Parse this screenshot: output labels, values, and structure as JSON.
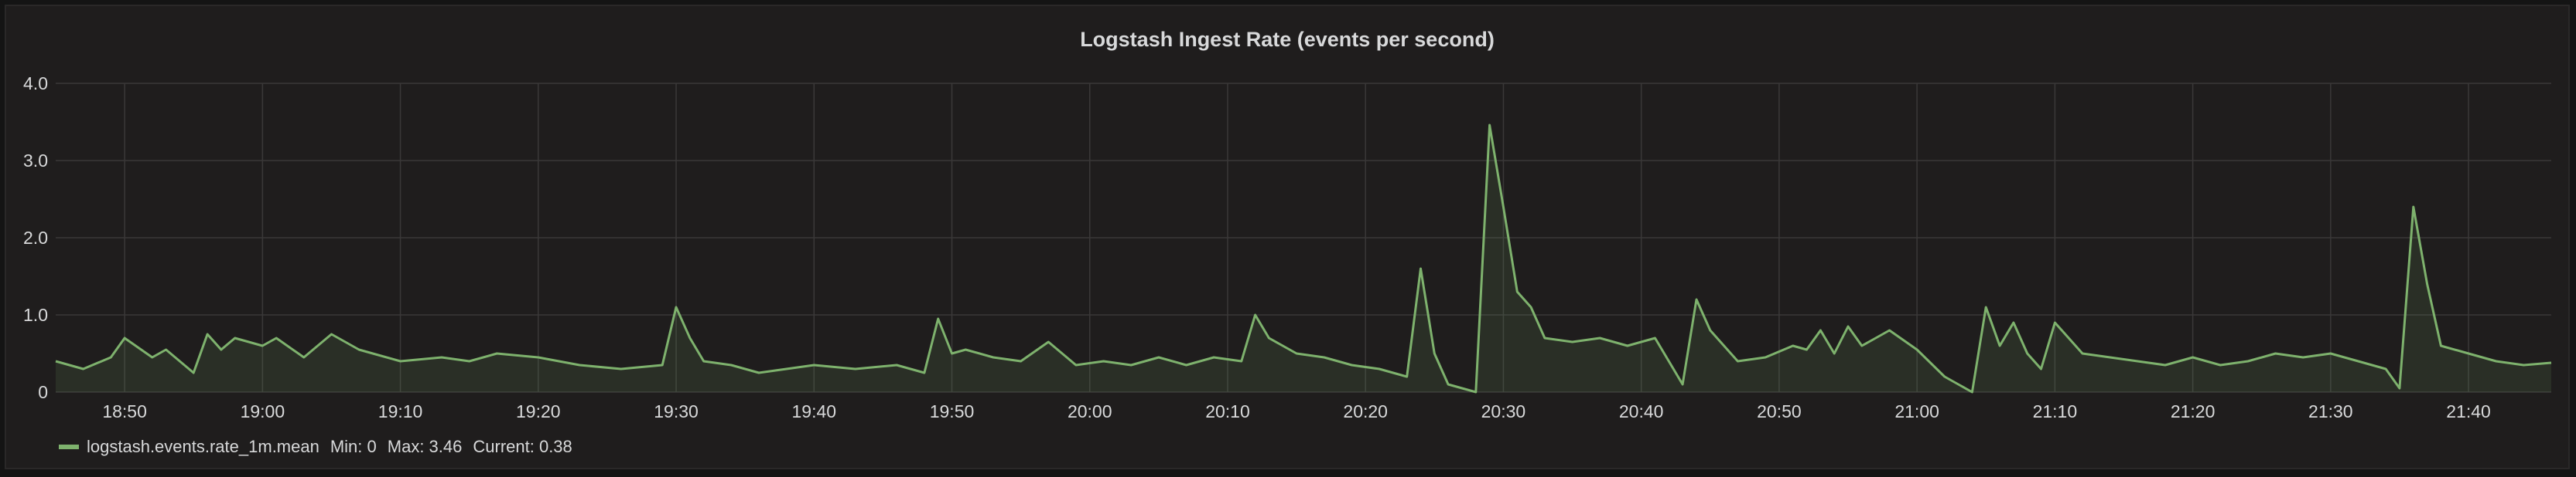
{
  "panel": {
    "title": "Logstash Ingest Rate (events per second)"
  },
  "legend": {
    "series_label": "logstash.events.rate_1m.mean",
    "min_label": "Min: 0",
    "max_label": "Max: 3.46",
    "current_label": "Current: 0.38"
  },
  "colors": {
    "series": "#7eb26d",
    "grid": "#3a3838",
    "background": "#1f1d1d",
    "text": "#d8d9da"
  },
  "chart_data": {
    "type": "area",
    "title": "Logstash Ingest Rate (events per second)",
    "xlabel": "",
    "ylabel": "",
    "xlim": [
      "18:45",
      "21:46"
    ],
    "ylim": [
      0,
      4.0
    ],
    "y_ticks": [
      "0",
      "1.0",
      "2.0",
      "3.0",
      "4.0"
    ],
    "x_ticks": [
      "18:50",
      "19:00",
      "19:10",
      "19:20",
      "19:30",
      "19:40",
      "19:50",
      "20:00",
      "20:10",
      "20:20",
      "20:30",
      "20:40",
      "20:50",
      "21:00",
      "21:10",
      "21:20",
      "21:30",
      "21:40"
    ],
    "grid": true,
    "legend_position": "bottom-left",
    "series": [
      {
        "name": "logstash.events.rate_1m.mean",
        "x": [
          "18:45",
          "18:47",
          "18:49",
          "18:50",
          "18:52",
          "18:53",
          "18:55",
          "18:56",
          "18:57",
          "18:58",
          "19:00",
          "19:01",
          "19:03",
          "19:05",
          "19:07",
          "19:08",
          "19:10",
          "19:13",
          "19:15",
          "19:17",
          "19:20",
          "19:23",
          "19:26",
          "19:29",
          "19:30",
          "19:31",
          "19:32",
          "19:34",
          "19:36",
          "19:38",
          "19:40",
          "19:43",
          "19:46",
          "19:48",
          "19:49",
          "19:50",
          "19:51",
          "19:53",
          "19:55",
          "19:57",
          "19:59",
          "20:01",
          "20:03",
          "20:05",
          "20:07",
          "20:09",
          "20:11",
          "20:12",
          "20:13",
          "20:15",
          "20:17",
          "20:19",
          "20:21",
          "20:23",
          "20:24",
          "20:25",
          "20:26",
          "20:27",
          "20:28",
          "20:29",
          "20:30",
          "20:31",
          "20:32",
          "20:33",
          "20:35",
          "20:37",
          "20:39",
          "20:41",
          "20:43",
          "20:44",
          "20:45",
          "20:47",
          "20:49",
          "20:51",
          "20:52",
          "20:53",
          "20:54",
          "20:55",
          "20:56",
          "20:57",
          "20:58",
          "21:00",
          "21:02",
          "21:03",
          "21:04",
          "21:05",
          "21:06",
          "21:07",
          "21:08",
          "21:09",
          "21:10",
          "21:12",
          "21:14",
          "21:16",
          "21:18",
          "21:20",
          "21:22",
          "21:24",
          "21:26",
          "21:28",
          "21:30",
          "21:32",
          "21:34",
          "21:35",
          "21:36",
          "21:37",
          "21:38",
          "21:40",
          "21:42",
          "21:44",
          "21:46"
        ],
        "values": [
          0.4,
          0.3,
          0.45,
          0.7,
          0.45,
          0.55,
          0.25,
          0.75,
          0.55,
          0.7,
          0.6,
          0.7,
          0.45,
          0.75,
          0.55,
          0.5,
          0.4,
          0.45,
          0.4,
          0.5,
          0.45,
          0.35,
          0.3,
          0.35,
          1.1,
          0.7,
          0.4,
          0.35,
          0.25,
          0.3,
          0.35,
          0.3,
          0.35,
          0.25,
          0.95,
          0.5,
          0.55,
          0.45,
          0.4,
          0.65,
          0.35,
          0.4,
          0.35,
          0.45,
          0.35,
          0.45,
          0.4,
          1.0,
          0.7,
          0.5,
          0.45,
          0.35,
          0.3,
          0.2,
          1.6,
          0.5,
          0.1,
          0.05,
          0.0,
          3.46,
          2.4,
          1.3,
          1.1,
          0.7,
          0.65,
          0.7,
          0.6,
          0.7,
          0.1,
          1.2,
          0.8,
          0.4,
          0.45,
          0.6,
          0.55,
          0.8,
          0.5,
          0.85,
          0.6,
          0.7,
          0.8,
          0.55,
          0.2,
          0.1,
          0.0,
          1.1,
          0.6,
          0.9,
          0.5,
          0.3,
          0.9,
          0.5,
          0.45,
          0.4,
          0.35,
          0.45,
          0.35,
          0.4,
          0.5,
          0.45,
          0.5,
          0.4,
          0.3,
          0.05,
          2.4,
          1.4,
          0.6,
          0.5,
          0.4,
          0.35,
          0.38
        ]
      }
    ]
  }
}
